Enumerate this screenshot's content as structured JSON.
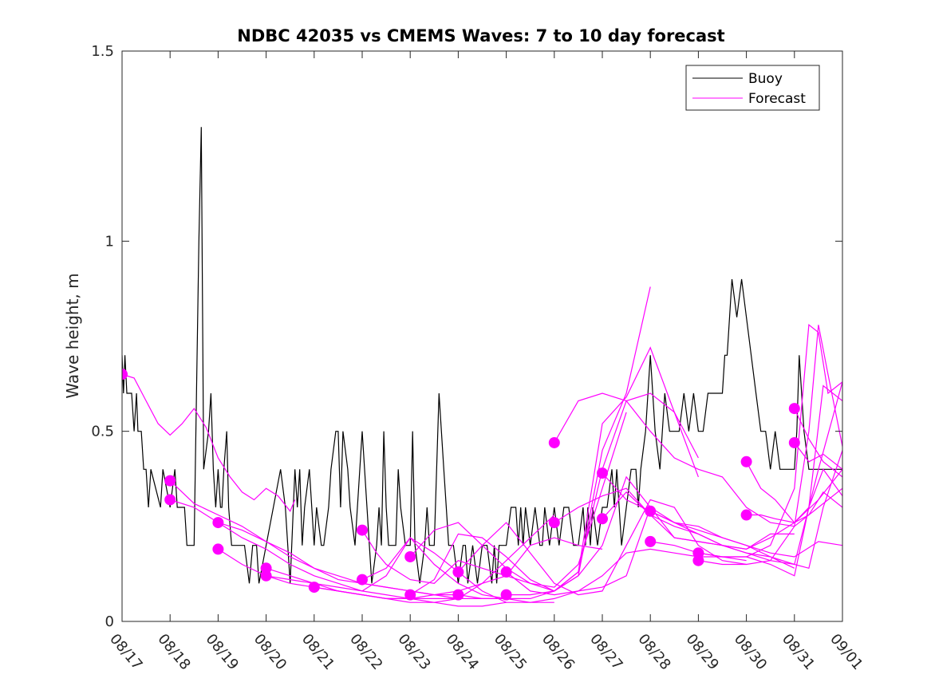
{
  "chart_data": {
    "type": "line",
    "title": "NDBC 42035 vs CMEMS Waves: 7 to 10 day forecast",
    "xlabel": "",
    "ylabel": "Wave height, m",
    "ylim": [
      0,
      1.5
    ],
    "yticks": [
      0,
      0.5,
      1,
      1.5
    ],
    "ytick_labels": [
      "0",
      "0.5",
      "1",
      "1.5"
    ],
    "xlim_days": [
      0,
      15
    ],
    "xtick_labels": [
      "08/17",
      "08/18",
      "08/19",
      "08/20",
      "08/21",
      "08/22",
      "08/23",
      "08/24",
      "08/25",
      "08/26",
      "08/27",
      "08/28",
      "08/29",
      "08/30",
      "08/31",
      "09/01"
    ],
    "grid": false,
    "legend": {
      "position": "top-right",
      "entries": [
        {
          "label": "Buoy",
          "color": "#000000"
        },
        {
          "label": "Forecast",
          "color": "#ff00ff"
        }
      ]
    },
    "colors": {
      "buoy": "#000000",
      "forecast": "#ff00ff",
      "axis": "#262626"
    },
    "buoy": {
      "name": "Buoy",
      "x_days": [
        0,
        0.03,
        0.06,
        0.1,
        0.13,
        0.2,
        0.25,
        0.3,
        0.33,
        0.4,
        0.45,
        0.5,
        0.55,
        0.6,
        0.8,
        0.85,
        1.0,
        1.1,
        1.15,
        1.2,
        1.3,
        1.35,
        1.4,
        1.5,
        1.6,
        1.65,
        1.7,
        1.8,
        1.85,
        1.9,
        1.95,
        2.0,
        2.05,
        2.08,
        2.12,
        2.18,
        2.22,
        2.28,
        2.35,
        2.5,
        2.55,
        2.65,
        2.72,
        2.8,
        2.85,
        3.0,
        3.3,
        3.4,
        3.5,
        3.6,
        3.65,
        3.7,
        3.75,
        3.8,
        3.9,
        4.0,
        4.05,
        4.15,
        4.2,
        4.3,
        4.35,
        4.45,
        4.5,
        4.55,
        4.6,
        4.7,
        4.75,
        4.85,
        4.9,
        5.0,
        5.1,
        5.15,
        5.2,
        5.3,
        5.35,
        5.4,
        5.45,
        5.5,
        5.55,
        5.6,
        5.7,
        5.75,
        5.8,
        5.9,
        6.0,
        6.05,
        6.1,
        6.2,
        6.3,
        6.35,
        6.4,
        6.5,
        6.6,
        6.7,
        6.75,
        6.8,
        6.9,
        7.0,
        7.1,
        7.15,
        7.2,
        7.3,
        7.4,
        7.5,
        7.55,
        7.6,
        7.7,
        7.75,
        7.8,
        7.85,
        7.95,
        8.0,
        8.1,
        8.2,
        8.25,
        8.3,
        8.35,
        8.4,
        8.5,
        8.6,
        8.7,
        8.75,
        8.8,
        8.9,
        9.0,
        9.1,
        9.2,
        9.3,
        9.4,
        9.5,
        9.6,
        9.65,
        9.7,
        9.75,
        9.8,
        9.9,
        10.0,
        10.1,
        10.2,
        10.25,
        10.3,
        10.4,
        10.5,
        10.6,
        10.7,
        10.75,
        10.8,
        10.9,
        11.0,
        11.1,
        11.2,
        11.3,
        11.4,
        11.5,
        11.6,
        11.7,
        11.8,
        11.9,
        12.0,
        12.1,
        12.2,
        12.3,
        12.4,
        12.45,
        12.5,
        12.55,
        12.6,
        12.65,
        12.7,
        12.8,
        12.9,
        13.0,
        13.1,
        13.2,
        13.3,
        13.4,
        13.5,
        13.6,
        13.7,
        13.8,
        13.9,
        14.0,
        14.05,
        14.1,
        14.2,
        14.3,
        14.4,
        14.5,
        14.6,
        14.8,
        15.0
      ],
      "values": [
        0.7,
        0.6,
        0.7,
        0.6,
        0.6,
        0.6,
        0.5,
        0.6,
        0.5,
        0.5,
        0.4,
        0.4,
        0.3,
        0.4,
        0.3,
        0.4,
        0.3,
        0.4,
        0.3,
        0.3,
        0.3,
        0.2,
        0.2,
        0.2,
        1.0,
        1.3,
        0.4,
        0.5,
        0.6,
        0.4,
        0.3,
        0.4,
        0.3,
        0.3,
        0.4,
        0.5,
        0.3,
        0.2,
        0.2,
        0.2,
        0.2,
        0.1,
        0.2,
        0.2,
        0.1,
        0.2,
        0.4,
        0.3,
        0.1,
        0.4,
        0.3,
        0.4,
        0.2,
        0.3,
        0.4,
        0.2,
        0.3,
        0.2,
        0.2,
        0.3,
        0.4,
        0.5,
        0.5,
        0.3,
        0.5,
        0.4,
        0.3,
        0.2,
        0.3,
        0.5,
        0.3,
        0.2,
        0.1,
        0.2,
        0.3,
        0.2,
        0.5,
        0.3,
        0.2,
        0.2,
        0.2,
        0.4,
        0.3,
        0.2,
        0.2,
        0.5,
        0.2,
        0.1,
        0.2,
        0.3,
        0.2,
        0.2,
        0.6,
        0.4,
        0.3,
        0.2,
        0.2,
        0.1,
        0.2,
        0.2,
        0.1,
        0.2,
        0.1,
        0.2,
        0.2,
        0.2,
        0.1,
        0.2,
        0.1,
        0.2,
        0.2,
        0.2,
        0.3,
        0.3,
        0.2,
        0.3,
        0.2,
        0.3,
        0.2,
        0.3,
        0.2,
        0.2,
        0.3,
        0.2,
        0.3,
        0.2,
        0.3,
        0.3,
        0.2,
        0.2,
        0.3,
        0.2,
        0.3,
        0.2,
        0.3,
        0.2,
        0.3,
        0.3,
        0.4,
        0.3,
        0.4,
        0.2,
        0.3,
        0.4,
        0.4,
        0.3,
        0.4,
        0.5,
        0.7,
        0.5,
        0.4,
        0.6,
        0.5,
        0.5,
        0.5,
        0.6,
        0.5,
        0.6,
        0.5,
        0.5,
        0.6,
        0.6,
        0.6,
        0.6,
        0.6,
        0.7,
        0.7,
        0.8,
        0.9,
        0.8,
        0.9,
        0.8,
        0.7,
        0.6,
        0.5,
        0.5,
        0.4,
        0.5,
        0.4,
        0.4,
        0.4,
        0.4,
        0.5,
        0.7,
        0.5,
        0.4,
        0.4,
        0.4,
        0.4,
        0.4,
        0.4,
        0.4,
        0.4
      ]
    },
    "forecasts": [
      {
        "name": "Forecast",
        "x_days": [
          0,
          0.25,
          0.5,
          0.75,
          1.0,
          1.25,
          1.5,
          1.75,
          2.0,
          2.25,
          2.5,
          2.75,
          3.0,
          3.25,
          3.5,
          3.6
        ],
        "values": [
          0.65,
          0.64,
          0.58,
          0.52,
          0.49,
          0.52,
          0.56,
          0.51,
          0.43,
          0.38,
          0.34,
          0.32,
          0.35,
          0.33,
          0.29,
          0.32
        ],
        "marker": true
      },
      {
        "name": "Forecast",
        "x_days": [
          1.0,
          1.5,
          2.0,
          2.5,
          3.0,
          3.5,
          4.0,
          4.5,
          5.0,
          5.5,
          6.0,
          6.5,
          7.0
        ],
        "values": [
          0.37,
          0.31,
          0.28,
          0.25,
          0.21,
          0.18,
          0.14,
          0.11,
          0.1,
          0.09,
          0.08,
          0.07,
          0.07
        ],
        "marker": true
      },
      {
        "name": "Forecast",
        "x_days": [
          1.0,
          1.5,
          2.0,
          2.5,
          3.0,
          3.5,
          4.0,
          4.5,
          5.0,
          5.5,
          6.0,
          6.5,
          7.0
        ],
        "values": [
          0.32,
          0.3,
          0.26,
          0.24,
          0.21,
          0.17,
          0.14,
          0.12,
          0.1,
          0.09,
          0.08,
          0.07,
          0.06
        ],
        "marker": true
      },
      {
        "name": "Forecast",
        "x_days": [
          2.0,
          2.5,
          3.0,
          3.5,
          4.0,
          4.5,
          5.0,
          5.5,
          6.0,
          6.5,
          7.0,
          7.5,
          8.0
        ],
        "values": [
          0.26,
          0.22,
          0.19,
          0.15,
          0.12,
          0.1,
          0.08,
          0.07,
          0.06,
          0.06,
          0.06,
          0.06,
          0.06
        ],
        "marker": true
      },
      {
        "name": "Forecast",
        "x_days": [
          2.0,
          2.5,
          3.0,
          3.5,
          4.0,
          4.5,
          5.0,
          5.5,
          6.0,
          6.5,
          7.0,
          7.5,
          8.0
        ],
        "values": [
          0.19,
          0.15,
          0.12,
          0.1,
          0.09,
          0.08,
          0.07,
          0.06,
          0.05,
          0.05,
          0.04,
          0.04,
          0.05
        ],
        "marker": true
      },
      {
        "name": "Forecast",
        "x_days": [
          3.0,
          3.5,
          4.0,
          4.5,
          5.0,
          5.5,
          6.0,
          6.5,
          7.0,
          7.5,
          8.0,
          8.5,
          9.0
        ],
        "values": [
          0.14,
          0.12,
          0.1,
          0.08,
          0.07,
          0.06,
          0.06,
          0.05,
          0.06,
          0.1,
          0.16,
          0.22,
          0.28
        ],
        "marker": true
      },
      {
        "name": "Forecast",
        "x_days": [
          3.0,
          3.5,
          4.0,
          4.5,
          5.0,
          5.5,
          6.0,
          6.5,
          7.0,
          7.5,
          8.0,
          8.5,
          9.0
        ],
        "values": [
          0.12,
          0.11,
          0.1,
          0.09,
          0.08,
          0.12,
          0.22,
          0.18,
          0.13,
          0.08,
          0.05,
          0.05,
          0.05
        ],
        "marker": true
      },
      {
        "name": "Forecast",
        "x_days": [
          4.0,
          4.5,
          5.0,
          5.5,
          6.0,
          6.5,
          7.0,
          7.5,
          8.0,
          8.5,
          9.0,
          9.5,
          10.0
        ],
        "values": [
          0.09,
          0.08,
          0.07,
          0.06,
          0.06,
          0.07,
          0.08,
          0.1,
          0.12,
          0.2,
          0.22,
          0.2,
          0.19
        ],
        "marker": true
      },
      {
        "name": "Forecast",
        "x_days": [
          5.0,
          5.3,
          5.5,
          6.0,
          6.5,
          7.0,
          7.5,
          8.0,
          8.5,
          9.0,
          9.5,
          10.0,
          10.5
        ],
        "values": [
          0.24,
          0.18,
          0.15,
          0.11,
          0.1,
          0.16,
          0.14,
          0.12,
          0.1,
          0.09,
          0.15,
          0.35,
          0.55
        ],
        "marker": true
      },
      {
        "name": "Forecast",
        "x_days": [
          5.0,
          5.5,
          6.0,
          6.5,
          7.0,
          7.5,
          8.0,
          8.5,
          9.0,
          9.5,
          10.0,
          10.5,
          11.0
        ],
        "values": [
          0.11,
          0.14,
          0.22,
          0.15,
          0.1,
          0.07,
          0.06,
          0.06,
          0.08,
          0.12,
          0.45,
          0.6,
          0.88
        ],
        "marker": true
      },
      {
        "name": "Forecast",
        "x_days": [
          6.0,
          6.5,
          7.0,
          7.5,
          8.0,
          8.5,
          9.0,
          9.5,
          10.0,
          10.5,
          11.0,
          11.5,
          12.0
        ],
        "values": [
          0.17,
          0.24,
          0.26,
          0.2,
          0.14,
          0.1,
          0.08,
          0.13,
          0.52,
          0.59,
          0.72,
          0.55,
          0.43
        ],
        "marker": true
      },
      {
        "name": "Forecast",
        "x_days": [
          6.0,
          6.5,
          7.0,
          7.5,
          8.0,
          8.5,
          9.0,
          9.5,
          10.0,
          10.5,
          11.0,
          11.5,
          12.0
        ],
        "values": [
          0.07,
          0.11,
          0.23,
          0.22,
          0.17,
          0.11,
          0.08,
          0.13,
          0.4,
          0.58,
          0.6,
          0.55,
          0.38
        ],
        "marker": true
      },
      {
        "name": "Forecast",
        "x_days": [
          7.0,
          7.5,
          8.0,
          8.5,
          9.0,
          9.5,
          10.0,
          10.5,
          11.0,
          11.5,
          12.0,
          12.5,
          13.0
        ],
        "values": [
          0.13,
          0.2,
          0.26,
          0.18,
          0.1,
          0.07,
          0.08,
          0.2,
          0.32,
          0.3,
          0.2,
          0.16,
          0.15
        ],
        "marker": true
      },
      {
        "name": "Forecast",
        "x_days": [
          7.0,
          7.5,
          8.0,
          8.5,
          9.0,
          9.5,
          10.0,
          10.5,
          11.0,
          11.5,
          12.0,
          12.5,
          13.0
        ],
        "values": [
          0.07,
          0.06,
          0.06,
          0.05,
          0.06,
          0.08,
          0.12,
          0.18,
          0.19,
          0.18,
          0.17,
          0.17,
          0.16
        ],
        "marker": true
      },
      {
        "name": "Forecast",
        "x_days": [
          8.0,
          8.5,
          9.0,
          9.5,
          10.0,
          10.5,
          11.0,
          11.5,
          12.0,
          12.5,
          13.0,
          13.5,
          14.0
        ],
        "values": [
          0.13,
          0.08,
          0.07,
          0.08,
          0.09,
          0.12,
          0.3,
          0.22,
          0.21,
          0.2,
          0.19,
          0.23,
          0.23
        ],
        "marker": true
      },
      {
        "name": "Forecast",
        "x_days": [
          8.0,
          8.5,
          9.0,
          9.5,
          10.0,
          10.5,
          11.0,
          11.5,
          12.0,
          12.5,
          13.0,
          13.5,
          14.0
        ],
        "values": [
          0.07,
          0.07,
          0.08,
          0.12,
          0.2,
          0.38,
          0.3,
          0.26,
          0.23,
          0.2,
          0.18,
          0.17,
          0.14
        ],
        "marker": true
      },
      {
        "name": "Forecast",
        "x_days": [
          9.0,
          9.5,
          10.0,
          10.5,
          11.0,
          11.5,
          12.0,
          12.5,
          13.0,
          13.5,
          14.0,
          14.5,
          15.0
        ],
        "values": [
          0.47,
          0.58,
          0.6,
          0.58,
          0.5,
          0.43,
          0.4,
          0.38,
          0.3,
          0.26,
          0.25,
          0.3,
          0.35
        ],
        "marker": true
      },
      {
        "name": "Forecast",
        "x_days": [
          9.0,
          9.5,
          10.0,
          10.5,
          11.0,
          11.5,
          12.0,
          12.5,
          13.0,
          13.5,
          14.0,
          14.5,
          15.0
        ],
        "values": [
          0.26,
          0.3,
          0.33,
          0.35,
          0.28,
          0.25,
          0.23,
          0.2,
          0.19,
          0.22,
          0.26,
          0.32,
          0.4
        ],
        "marker": true
      },
      {
        "name": "Forecast",
        "x_days": [
          10.0,
          10.5,
          11.0,
          11.5,
          12.0,
          12.5,
          13.0,
          13.5,
          14.0,
          14.5,
          15.0
        ],
        "values": [
          0.39,
          0.32,
          0.29,
          0.26,
          0.25,
          0.22,
          0.2,
          0.18,
          0.17,
          0.21,
          0.2
        ],
        "marker": true
      },
      {
        "name": "Forecast",
        "x_days": [
          10.0,
          10.5,
          11.0,
          11.5,
          12.0,
          12.5,
          13.0,
          13.5,
          14.0,
          14.5,
          15.0
        ],
        "values": [
          0.27,
          0.34,
          0.28,
          0.22,
          0.21,
          0.2,
          0.18,
          0.16,
          0.15,
          0.4,
          0.63
        ],
        "marker": true
      },
      {
        "name": "Forecast",
        "x_days": [
          11.0,
          11.5,
          12.0,
          12.5,
          13.0,
          13.5,
          14.0,
          14.3,
          14.6,
          15.0
        ],
        "values": [
          0.29,
          0.26,
          0.24,
          0.22,
          0.2,
          0.17,
          0.15,
          0.14,
          0.3,
          0.45
        ],
        "marker": true
      },
      {
        "name": "Forecast",
        "x_days": [
          11.0,
          11.5,
          12.0,
          12.5,
          13.0,
          13.5,
          14.0,
          14.3,
          14.6,
          15.0
        ],
        "values": [
          0.21,
          0.2,
          0.18,
          0.17,
          0.17,
          0.15,
          0.12,
          0.3,
          0.62,
          0.58
        ],
        "marker": true
      },
      {
        "name": "Forecast",
        "x_days": [
          12.0,
          12.5,
          13.0,
          13.5,
          14.0,
          14.3,
          14.5,
          14.7,
          15.0
        ],
        "values": [
          0.18,
          0.17,
          0.17,
          0.2,
          0.35,
          0.78,
          0.76,
          0.6,
          0.63
        ],
        "marker": true
      },
      {
        "name": "Forecast",
        "x_days": [
          12.0,
          12.5,
          13.0,
          13.5,
          14.0,
          14.3,
          14.5,
          14.7,
          15.0
        ],
        "values": [
          0.16,
          0.15,
          0.15,
          0.16,
          0.25,
          0.5,
          0.78,
          0.65,
          0.46
        ],
        "marker": true
      },
      {
        "name": "Forecast",
        "x_days": [
          13.0,
          13.3,
          13.6,
          14.0,
          14.3,
          14.6,
          15.0
        ],
        "values": [
          0.42,
          0.35,
          0.32,
          0.26,
          0.3,
          0.4,
          0.33
        ],
        "marker": true
      },
      {
        "name": "Forecast",
        "x_days": [
          13.0,
          13.3,
          13.6,
          14.0,
          14.3,
          14.6,
          15.0
        ],
        "values": [
          0.28,
          0.28,
          0.27,
          0.26,
          0.28,
          0.34,
          0.3
        ],
        "marker": true
      },
      {
        "name": "Forecast",
        "x_days": [
          14.0,
          14.3,
          14.6,
          15.0
        ],
        "values": [
          0.56,
          0.48,
          0.42,
          0.38
        ],
        "marker": true
      },
      {
        "name": "Forecast",
        "x_days": [
          14.0,
          14.3,
          14.6,
          15.0
        ],
        "values": [
          0.47,
          0.42,
          0.44,
          0.4
        ],
        "marker": true
      }
    ]
  }
}
